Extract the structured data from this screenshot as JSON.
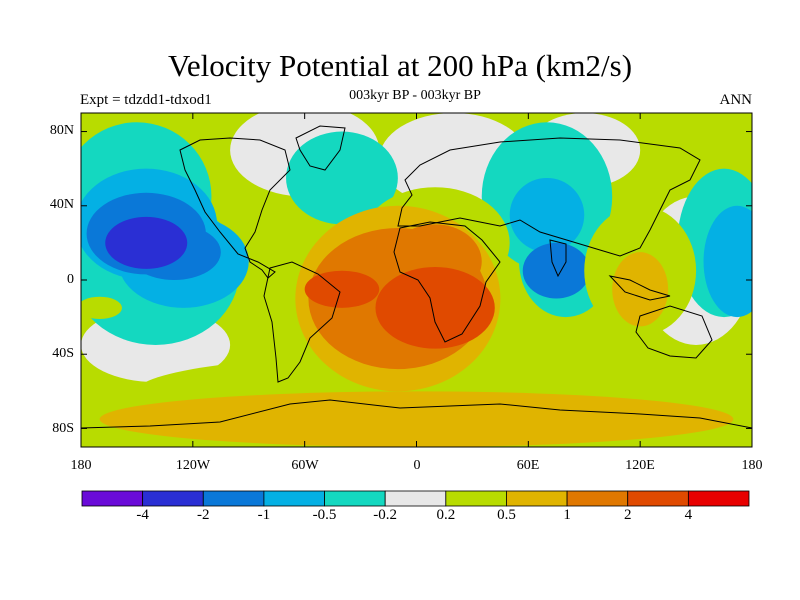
{
  "title": "Velocity Potential at 200 hPa (km2/s)",
  "subtitle": "003kyr BP - 003kyr BP",
  "left_string": "Expt = tdzdd1-tdxod1",
  "right_string": "ANN",
  "lat_labels": [
    "80N",
    "40N",
    "0",
    "40S",
    "80S"
  ],
  "lon_labels": [
    "180",
    "120W",
    "60W",
    "0",
    "60E",
    "120E",
    "180"
  ],
  "colorbar": {
    "labels": [
      "-4",
      "-2",
      "-1",
      "-0.5",
      "-0.2",
      "0.2",
      "0.5",
      "1",
      "2",
      "4"
    ],
    "colors": [
      "#6a0bd8",
      "#2a2fd4",
      "#0a78d8",
      "#04b0e4",
      "#14d8c0",
      "#e8e8e8",
      "#b8dc00",
      "#e0b400",
      "#e07800",
      "#e04a00",
      "#e80000"
    ]
  },
  "map": {
    "lon_range": [
      -180,
      180
    ],
    "lat_range": [
      -90,
      90
    ],
    "blobs": [
      {
        "level": 5,
        "lon": -60,
        "lat": 70,
        "rx": 40,
        "ry": 25
      },
      {
        "level": 5,
        "lon": 20,
        "lat": 65,
        "rx": 40,
        "ry": 25
      },
      {
        "level": 5,
        "lon": 90,
        "lat": 70,
        "rx": 30,
        "ry": 20
      },
      {
        "level": 5,
        "lon": 150,
        "lat": 5,
        "rx": 30,
        "ry": 40
      },
      {
        "level": 5,
        "lon": -140,
        "lat": -35,
        "rx": 40,
        "ry": 20
      },
      {
        "level": 4,
        "lon": -150,
        "lat": 45,
        "rx": 40,
        "ry": 40
      },
      {
        "level": 4,
        "lon": -140,
        "lat": 5,
        "rx": 45,
        "ry": 40
      },
      {
        "level": 4,
        "lon": -40,
        "lat": 55,
        "rx": 30,
        "ry": 25
      },
      {
        "level": 4,
        "lon": 70,
        "lat": 45,
        "rx": 35,
        "ry": 40
      },
      {
        "level": 4,
        "lon": 80,
        "lat": 10,
        "rx": 25,
        "ry": 30
      },
      {
        "level": 4,
        "lon": 165,
        "lat": 20,
        "rx": 25,
        "ry": 40
      },
      {
        "level": 3,
        "lon": -145,
        "lat": 30,
        "rx": 38,
        "ry": 30
      },
      {
        "level": 3,
        "lon": -125,
        "lat": 10,
        "rx": 35,
        "ry": 25
      },
      {
        "level": 3,
        "lon": 70,
        "lat": 35,
        "rx": 20,
        "ry": 20
      },
      {
        "level": 3,
        "lon": 172,
        "lat": 10,
        "rx": 18,
        "ry": 30
      },
      {
        "level": 2,
        "lon": -145,
        "lat": 25,
        "rx": 32,
        "ry": 22
      },
      {
        "level": 2,
        "lon": -130,
        "lat": 15,
        "rx": 25,
        "ry": 15
      },
      {
        "level": 2,
        "lon": 75,
        "lat": 5,
        "rx": 18,
        "ry": 15
      },
      {
        "level": 1,
        "lon": -145,
        "lat": 20,
        "rx": 22,
        "ry": 14
      },
      {
        "level": 6,
        "lon": -170,
        "lat": -15,
        "rx": 12,
        "ry": 6
      },
      {
        "level": 6,
        "lon": 0,
        "lat": -60,
        "rx": 150,
        "ry": 20
      },
      {
        "level": 6,
        "lon": -50,
        "lat": -40,
        "rx": 40,
        "ry": 30
      },
      {
        "level": 6,
        "lon": 10,
        "lat": 20,
        "rx": 40,
        "ry": 30
      },
      {
        "level": 6,
        "lon": 120,
        "lat": 5,
        "rx": 30,
        "ry": 35
      },
      {
        "level": 6,
        "lon": 90,
        "lat": -60,
        "rx": 60,
        "ry": 20
      },
      {
        "level": 7,
        "lon": 0,
        "lat": -75,
        "rx": 170,
        "ry": 15
      },
      {
        "level": 7,
        "lon": -10,
        "lat": -10,
        "rx": 55,
        "ry": 50
      },
      {
        "level": 7,
        "lon": 120,
        "lat": -5,
        "rx": 15,
        "ry": 20
      },
      {
        "level": 8,
        "lon": -10,
        "lat": -10,
        "rx": 48,
        "ry": 38
      },
      {
        "level": 8,
        "lon": 10,
        "lat": 10,
        "rx": 25,
        "ry": 20
      },
      {
        "level": 9,
        "lon": 10,
        "lat": -15,
        "rx": 32,
        "ry": 22
      },
      {
        "level": 9,
        "lon": -40,
        "lat": -5,
        "rx": 20,
        "ry": 10
      }
    ]
  }
}
